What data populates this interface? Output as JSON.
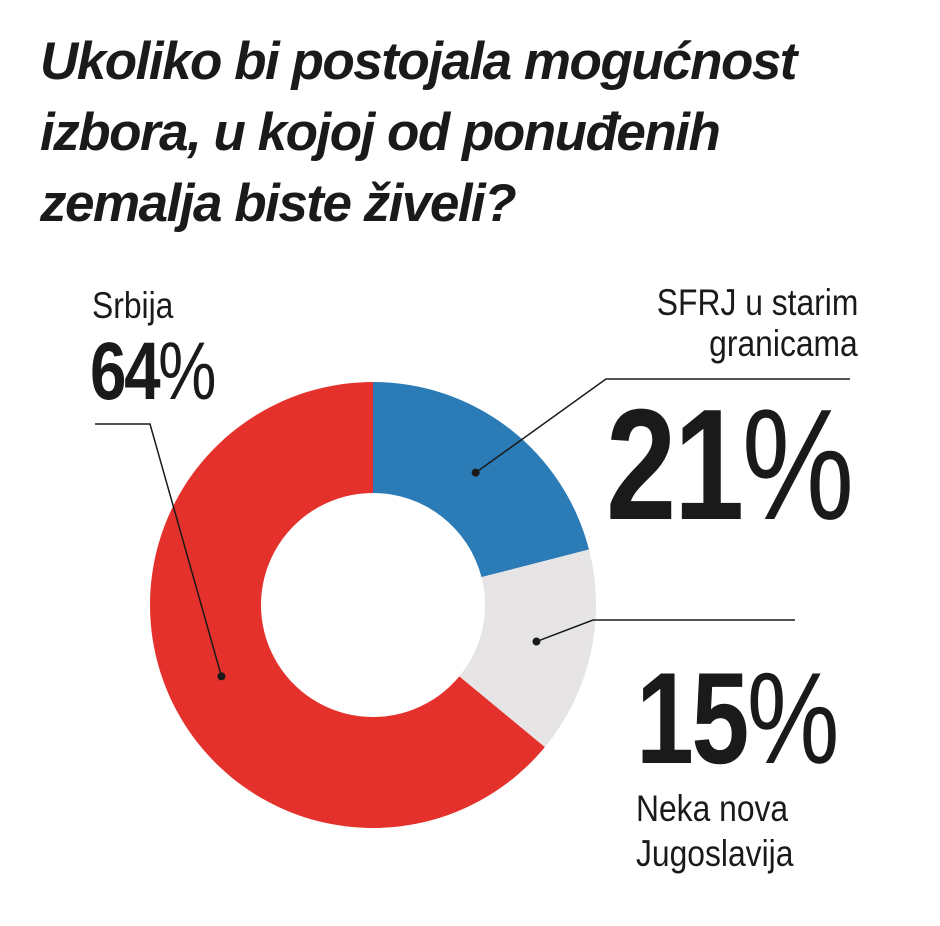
{
  "chart_data": {
    "type": "donut",
    "title_lines": [
      "Ukoliko bi postojala mogućnost",
      "izbora, u kojoj od ponuđenih",
      "zemalja biste živeli?"
    ],
    "slices": [
      {
        "name": "SFRJ u starim granicama",
        "name_lines": [
          "SFRJ u starim",
          "granicama"
        ],
        "value": 21,
        "value_label": "21",
        "color": "#2a7bb6"
      },
      {
        "name": "Neka nova Jugoslavija",
        "name_lines": [
          "Neka nova",
          "Jugoslavija"
        ],
        "value": 15,
        "value_label": "15",
        "color": "#e6e4e4"
      },
      {
        "name": "Srbija",
        "name_lines": [
          "Srbija"
        ],
        "value": 64,
        "value_label": "64",
        "color": "#e4312b"
      }
    ],
    "unit": "%",
    "start": "12 o'clock",
    "direction": "clockwise"
  }
}
